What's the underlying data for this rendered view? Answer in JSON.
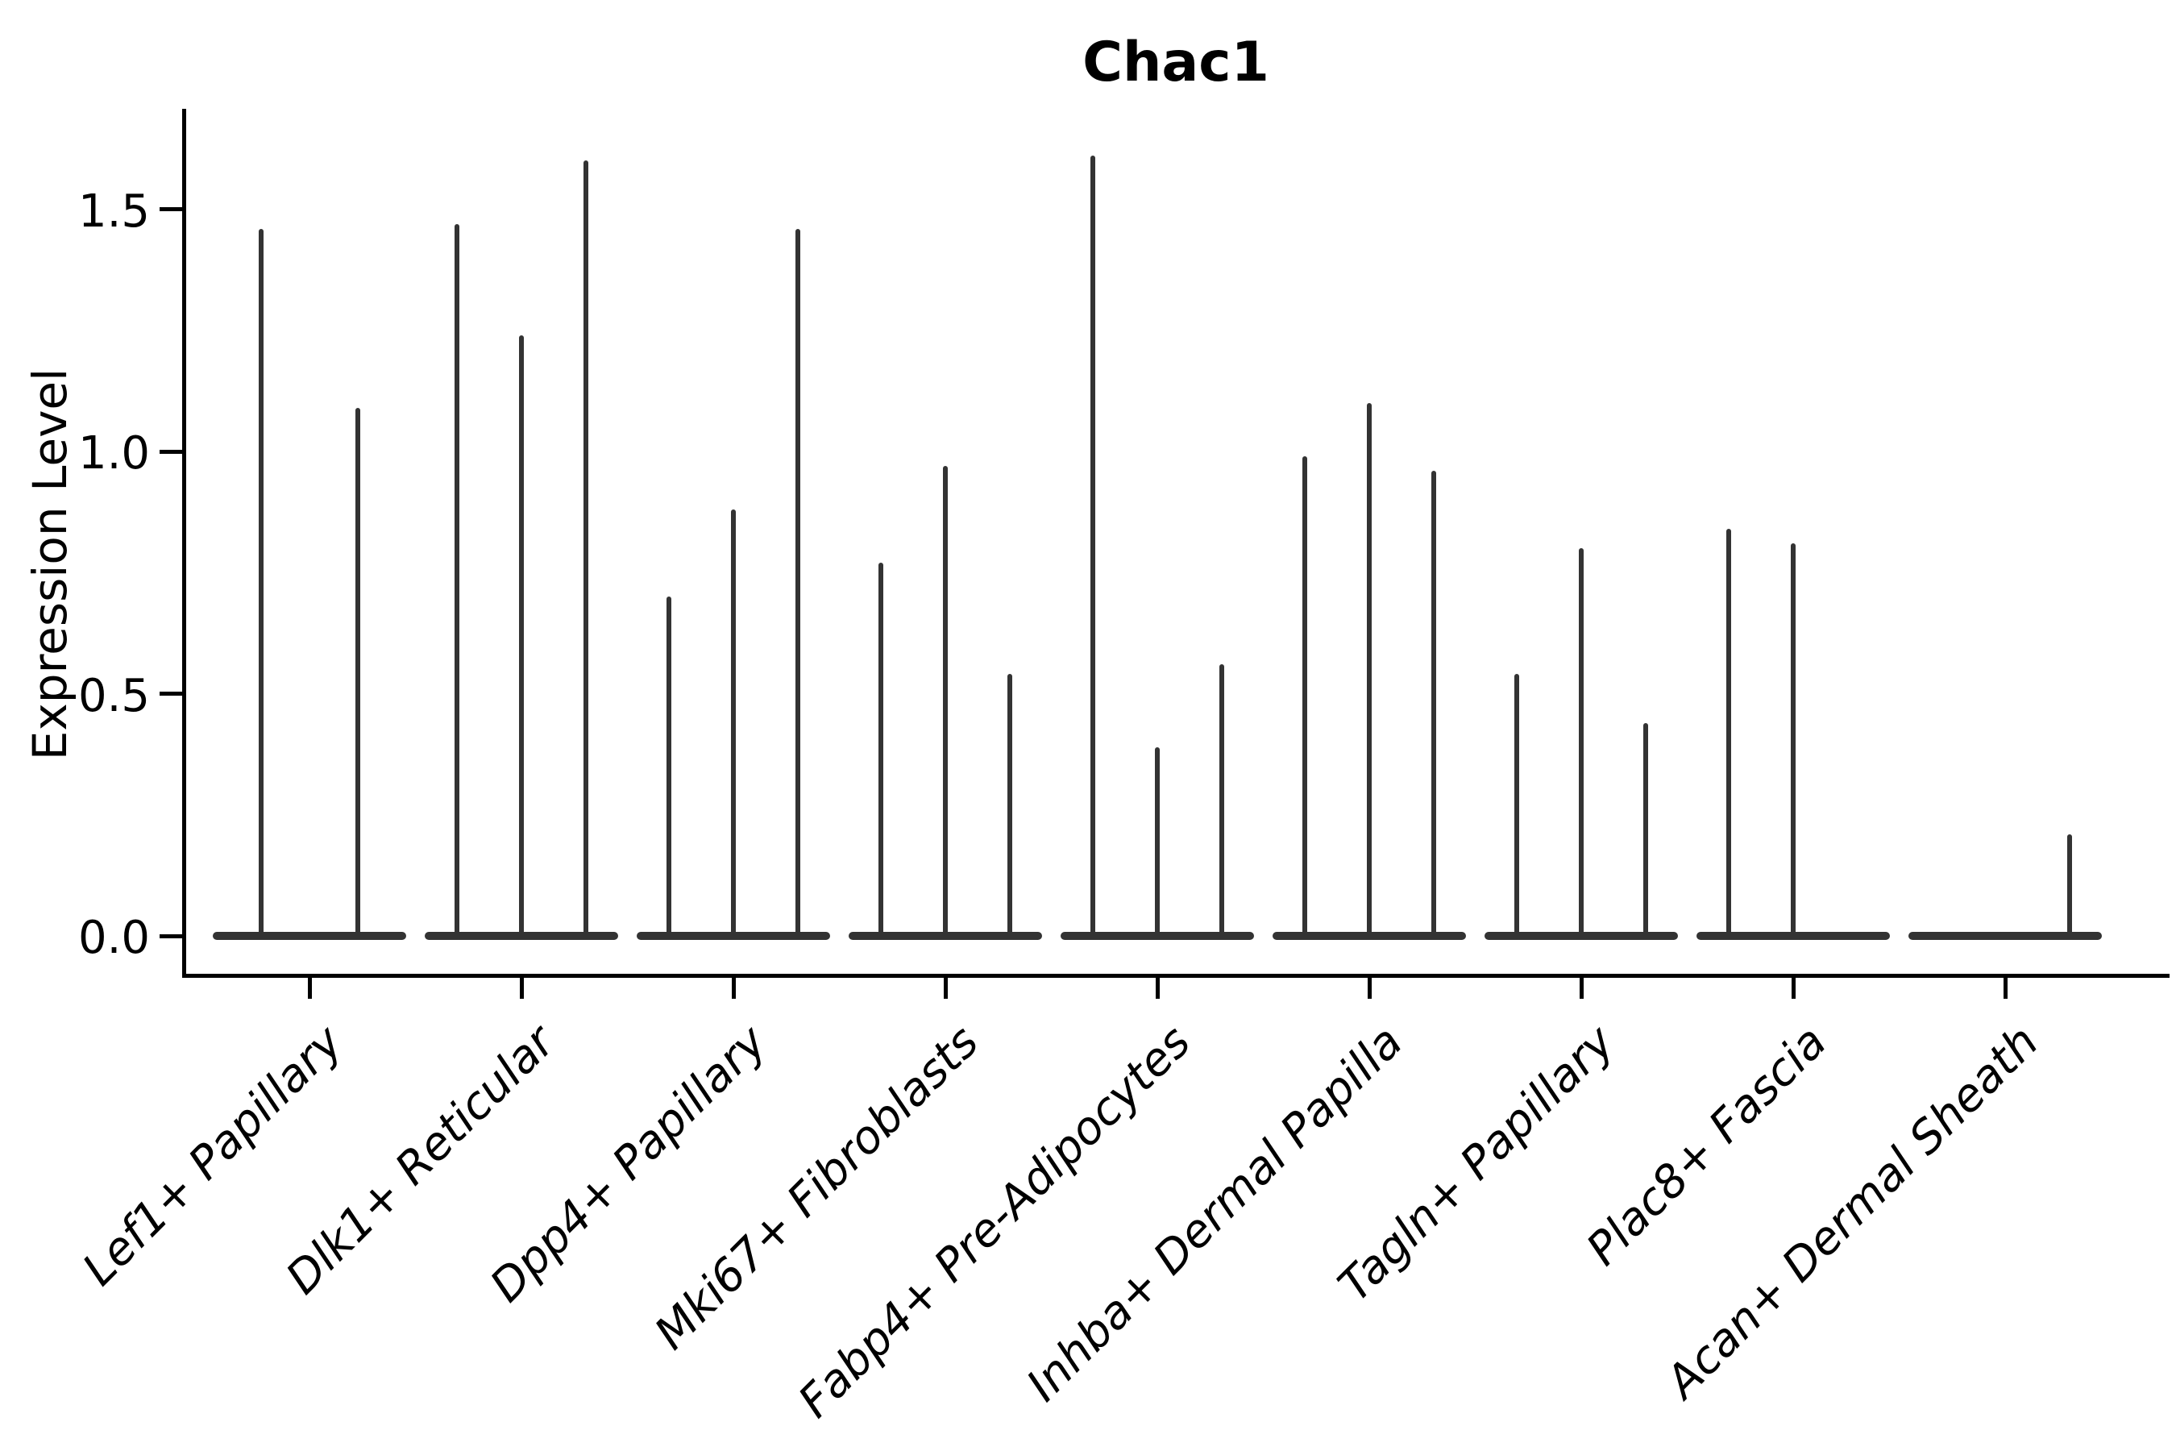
{
  "title": "Chac1",
  "chart_data": {
    "type": "violin",
    "title": "Chac1",
    "ylabel": "Expression Level",
    "xlabel": "",
    "ytick_labels": [
      "0.0",
      "0.5",
      "1.0",
      "1.5"
    ],
    "ytick_values": [
      0.0,
      0.5,
      1.0,
      1.5
    ],
    "ylim": [
      -0.08,
      1.71
    ],
    "grid": false,
    "legend": "none",
    "x_labels_rotation_deg": 45,
    "categories": [
      "Lef1+ Papillary",
      "Dlk1+ Reticular",
      "Dpp4+ Papillary",
      "Mki67+ Fibroblasts",
      "Fabp4+ Pre-Adipocytes",
      "Inhba+ Dermal Papilla",
      "Tagln+ Papillary",
      "Plac8+ Fascia",
      "Acan+ Dermal Sheath"
    ],
    "groups": [
      {
        "category": "Lef1+ Papillary",
        "violin_max_values": [
          1.46,
          1.09
        ]
      },
      {
        "category": "Dlk1+ Reticular",
        "violin_max_values": [
          1.47,
          1.24,
          1.6
        ]
      },
      {
        "category": "Dpp4+ Papillary",
        "violin_max_values": [
          0.7,
          0.88,
          1.46
        ]
      },
      {
        "category": "Mki67+ Fibroblasts",
        "violin_max_values": [
          0.77,
          0.97,
          0.54
        ]
      },
      {
        "category": "Fabp4+ Pre-Adipocytes",
        "violin_max_values": [
          1.61,
          0.39,
          0.56
        ]
      },
      {
        "category": "Inhba+ Dermal Papilla",
        "violin_max_values": [
          0.99,
          1.1,
          0.96
        ]
      },
      {
        "category": "Tagln+ Papillary",
        "violin_max_values": [
          0.54,
          0.8,
          0.44
        ]
      },
      {
        "category": "Plac8+ Fascia",
        "violin_max_values": [
          0.84,
          0.81,
          0.0
        ]
      },
      {
        "category": "Acan+ Dermal Sheath",
        "violin_max_values": [
          0.0,
          0.0,
          0.21
        ]
      }
    ],
    "colors": {
      "violin": "#333333",
      "axis": "#000000",
      "text": "#000000",
      "background": "#ffffff"
    }
  }
}
